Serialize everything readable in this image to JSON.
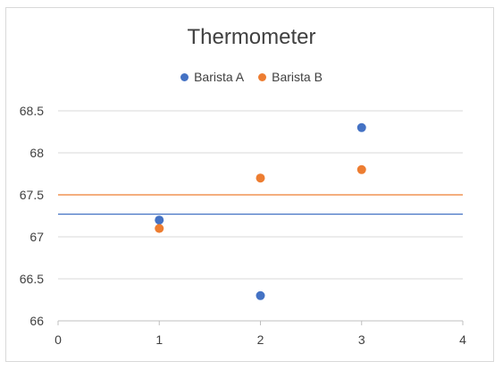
{
  "chart_data": {
    "type": "scatter",
    "title": "Thermometer",
    "xlabel": "",
    "ylabel": "",
    "xlim": [
      0,
      4
    ],
    "ylim": [
      66,
      68.5
    ],
    "x_ticks": [
      "0",
      "1",
      "2",
      "3",
      "4"
    ],
    "y_ticks": [
      "66",
      "66.5",
      "67",
      "67.5",
      "68",
      "68.5"
    ],
    "grid": "horizontal",
    "legend": "top",
    "series": [
      {
        "name": "Barista A",
        "color": "#4472c4",
        "points": [
          {
            "x": 1,
            "y": 67.2
          },
          {
            "x": 2,
            "y": 66.3
          },
          {
            "x": 3,
            "y": 68.3
          }
        ],
        "reference_line": 67.27
      },
      {
        "name": "Barista B",
        "color": "#ed7d31",
        "points": [
          {
            "x": 1,
            "y": 67.1
          },
          {
            "x": 2,
            "y": 67.7
          },
          {
            "x": 3,
            "y": 67.8
          }
        ],
        "reference_line": 67.5
      }
    ]
  }
}
